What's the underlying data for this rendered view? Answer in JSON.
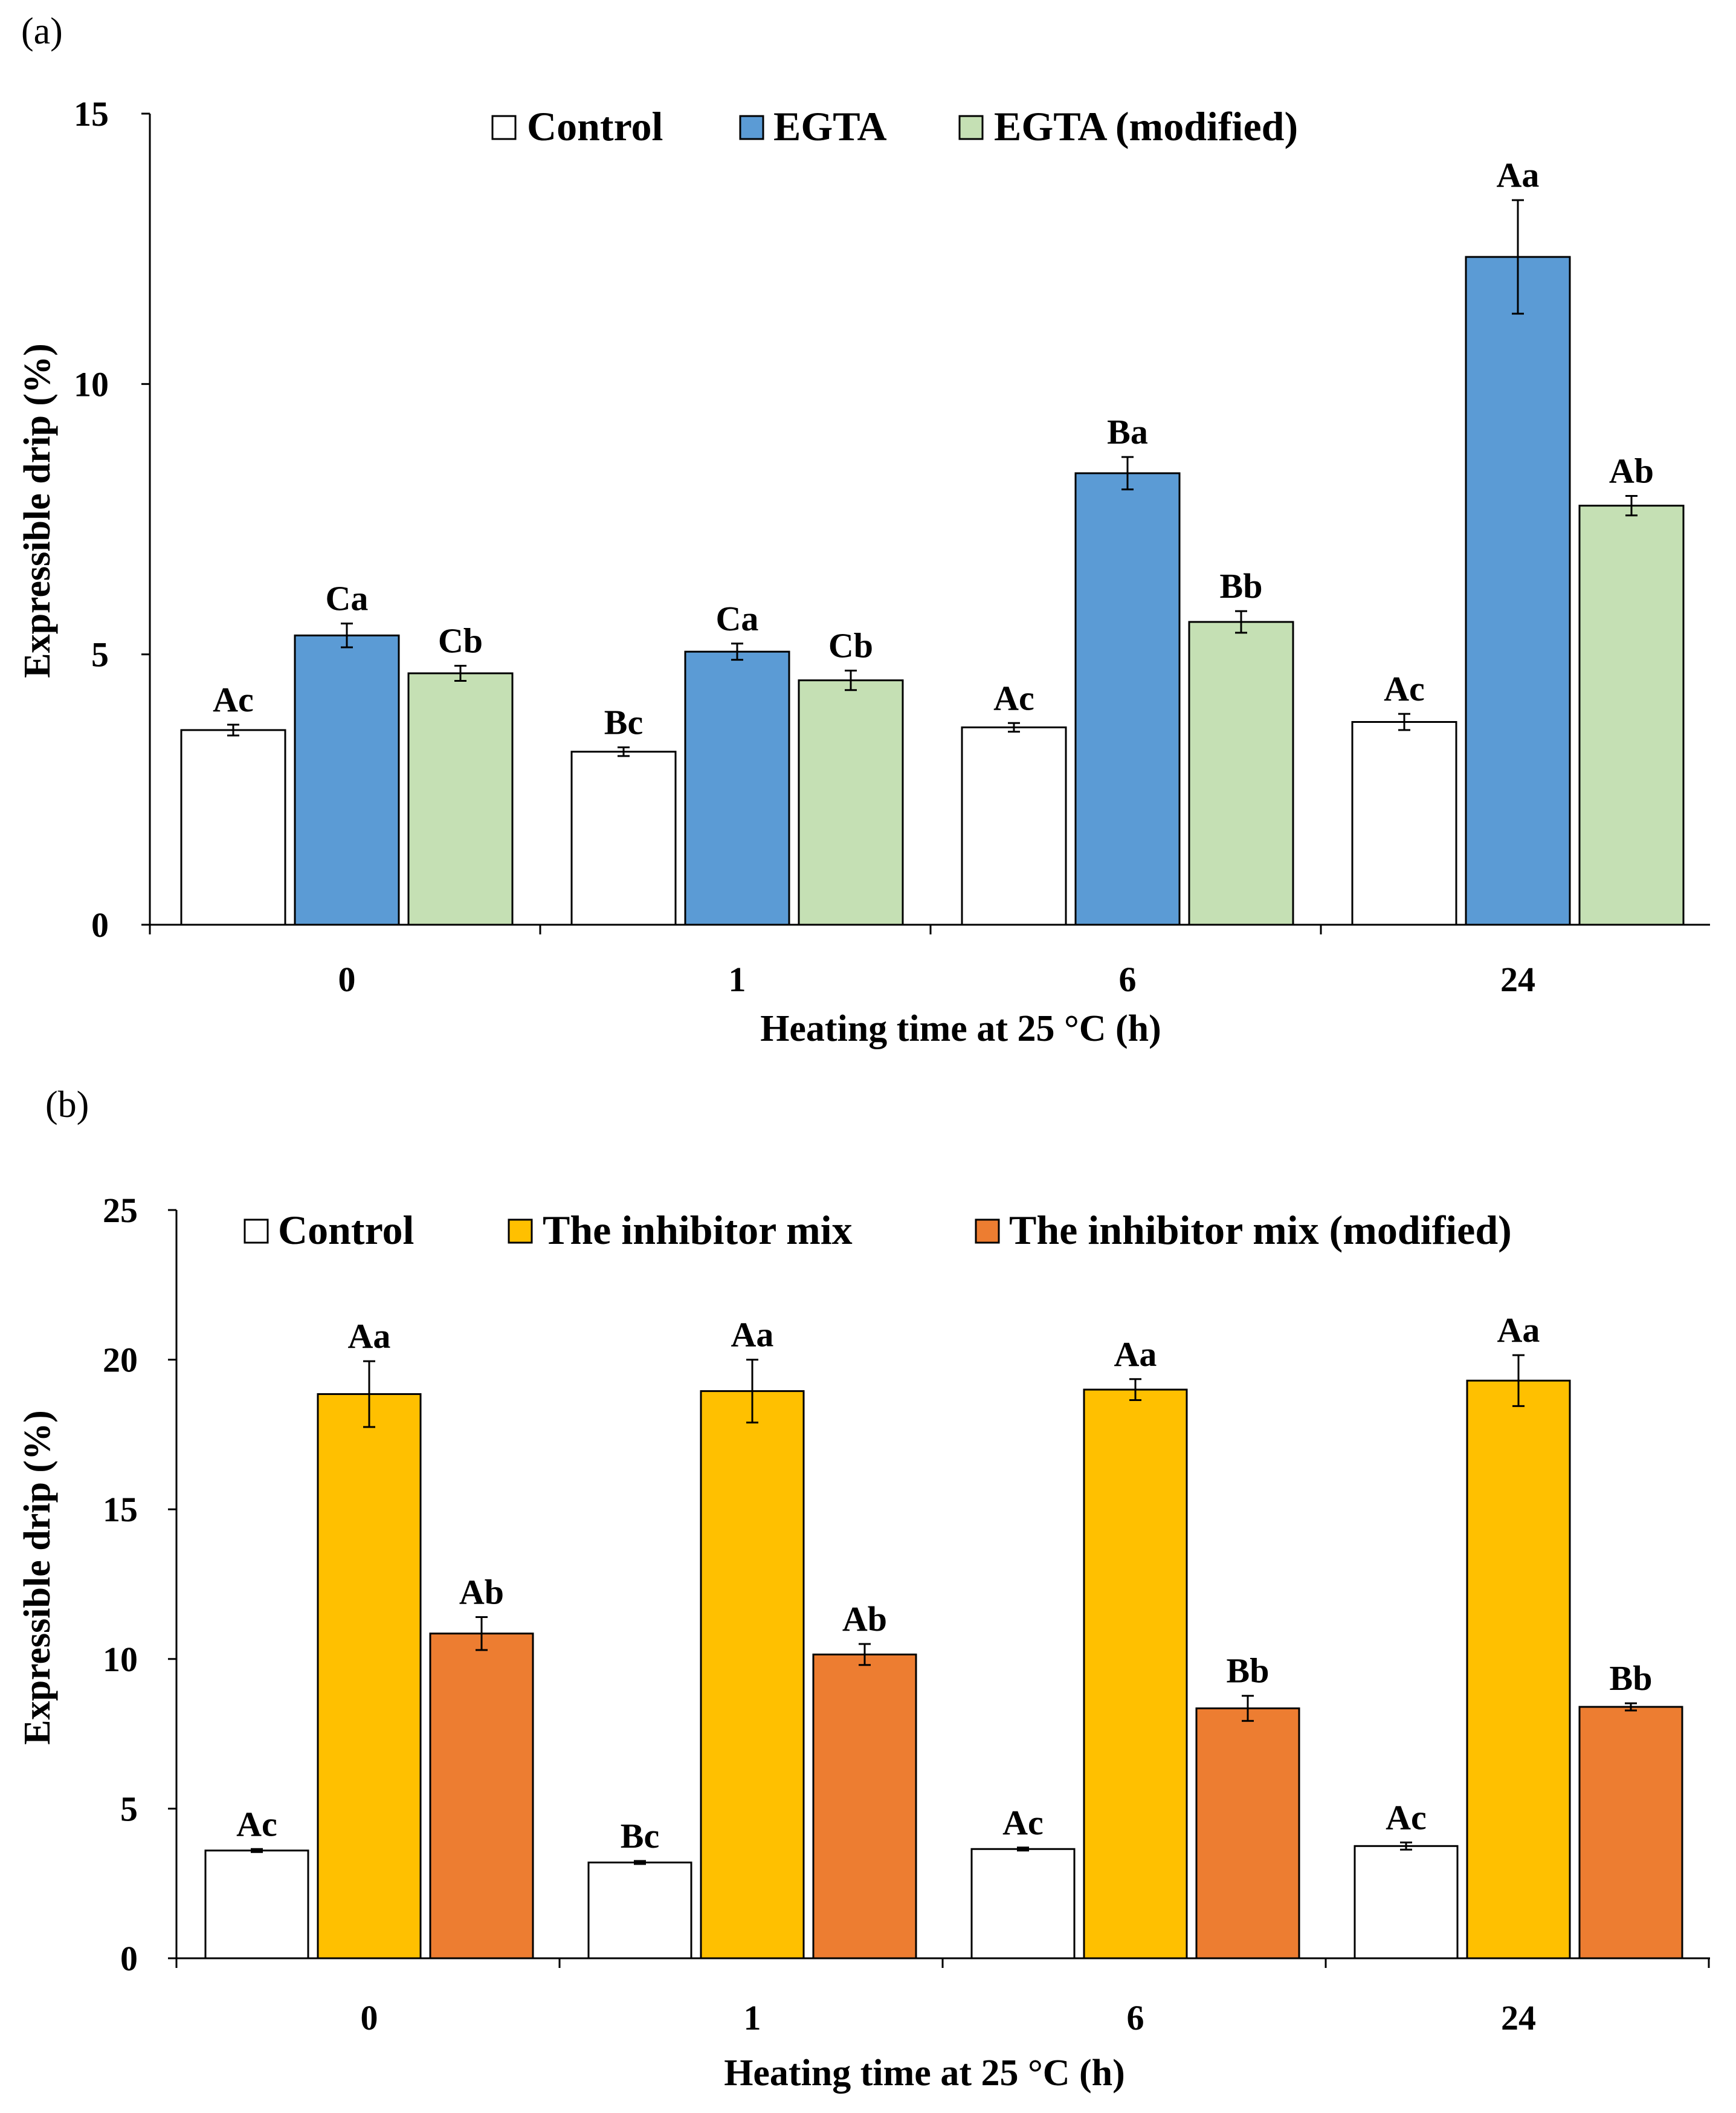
{
  "chart_data": [
    {
      "panel_label": "(a)",
      "type": "bar",
      "categories": [
        "0",
        "1",
        "6",
        "24"
      ],
      "xlabel": "Heating time at 25 °C (h)",
      "ylabel": "Expressible drip (%)",
      "ylim": [
        0,
        15
      ],
      "yticks": [
        "0",
        "5",
        "10",
        "15"
      ],
      "grid": false,
      "legend_position": "top",
      "series": [
        {
          "name": "Control",
          "color": "#ffffff",
          "values": [
            3.6,
            3.2,
            3.65,
            3.75
          ],
          "errors": [
            0.1,
            0.08,
            0.08,
            0.15
          ],
          "labels": [
            "Ac",
            "Bc",
            "Ac",
            "Ac"
          ]
        },
        {
          "name": "EGTA",
          "color": "#5b9bd5",
          "values": [
            5.35,
            5.05,
            8.35,
            12.35
          ],
          "errors": [
            0.22,
            0.15,
            0.3,
            1.05
          ],
          "labels": [
            "Ca",
            "Ca",
            "Ba",
            "Aa"
          ]
        },
        {
          "name": "EGTA (modified)",
          "color": "#c5e0b4",
          "values": [
            4.65,
            4.52,
            5.6,
            7.75
          ],
          "errors": [
            0.14,
            0.18,
            0.2,
            0.18
          ],
          "labels": [
            "Cb",
            "Cb",
            "Bb",
            "Ab"
          ]
        }
      ]
    },
    {
      "panel_label": "(b)",
      "type": "bar",
      "categories": [
        "0",
        "1",
        "6",
        "24"
      ],
      "xlabel": "Heating time at 25 °C (h)",
      "ylabel": "Expressible drip (%)",
      "ylim": [
        0,
        25
      ],
      "yticks": [
        "0",
        "5",
        "10",
        "15",
        "20",
        "25"
      ],
      "grid": false,
      "legend_position": "top",
      "series": [
        {
          "name": "Control",
          "color": "#ffffff",
          "values": [
            3.6,
            3.2,
            3.65,
            3.75
          ],
          "errors": [
            0.05,
            0.05,
            0.05,
            0.12
          ],
          "labels": [
            "Ac",
            "Bc",
            "Ac",
            "Ac"
          ]
        },
        {
          "name": "The inhibitor mix",
          "color": "#ffc000",
          "values": [
            18.85,
            18.95,
            19.0,
            19.3
          ],
          "errors": [
            1.1,
            1.05,
            0.35,
            0.85
          ],
          "labels": [
            "Aa",
            "Aa",
            "Aa",
            "Aa"
          ]
        },
        {
          "name": "The inhibitor mix (modified)",
          "color": "#ed7d31",
          "values": [
            10.85,
            10.15,
            8.35,
            8.4
          ],
          "errors": [
            0.55,
            0.35,
            0.42,
            0.12
          ],
          "labels": [
            "Ab",
            "Ab",
            "Bb",
            "Bb"
          ]
        }
      ]
    }
  ]
}
